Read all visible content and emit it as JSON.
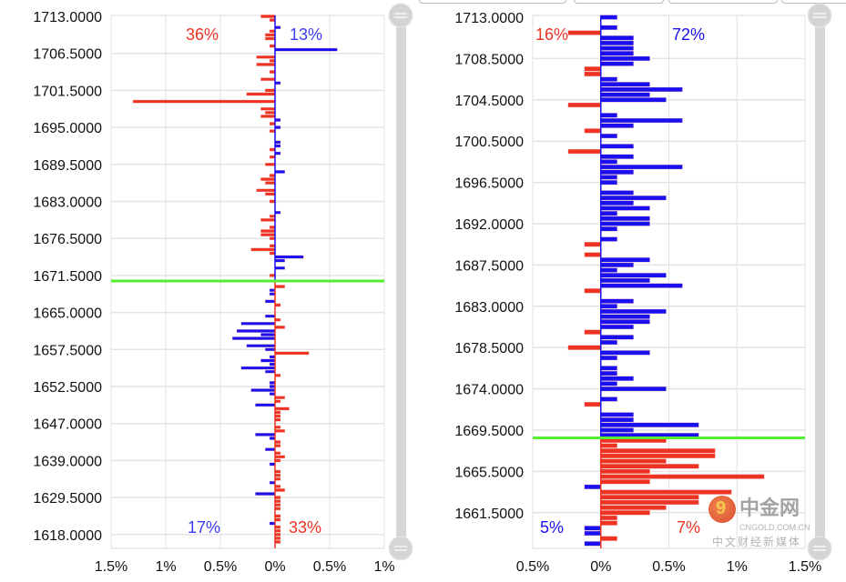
{
  "tabs": [
    "",
    "",
    "",
    ""
  ],
  "chart_data": [
    {
      "type": "bar",
      "orientation": "horizontal",
      "title": "",
      "y_tick_labels": [
        "1713.0000",
        "1706.5000",
        "1701.5000",
        "1695.0000",
        "1689.5000",
        "1683.0000",
        "1676.5000",
        "1671.5000",
        "1665.0000",
        "1657.5000",
        "1652.5000",
        "1647.0000",
        "1639.0000",
        "1629.5000",
        "1618.0000"
      ],
      "rows_per_tick": 10,
      "total_rows": 143,
      "x_tick_labels": [
        "1.5%",
        "1%",
        "0.5%",
        "0%",
        "0.5%",
        "1%"
      ],
      "xlim_pct": [
        -1.5,
        1.0
      ],
      "current_price_row": 71.5,
      "summary": {
        "top_left": "36%",
        "top_right": "13%",
        "bottom_left": "17%",
        "bottom_right": "33%"
      },
      "colors": {
        "red": "#ee3322",
        "blue": "#1a0fef",
        "current": "#55ee33"
      },
      "bars_note": "row index, value in %, color (r/b); negative = left side",
      "bars": [
        [
          0,
          -0.13,
          "r"
        ],
        [
          1,
          -0.05,
          "r"
        ],
        [
          3,
          0.05,
          "b"
        ],
        [
          4,
          -0.05,
          "r"
        ],
        [
          5,
          -0.09,
          "r"
        ],
        [
          6,
          -0.09,
          "r"
        ],
        [
          8,
          -0.05,
          "r"
        ],
        [
          9,
          0.57,
          "b"
        ],
        [
          11,
          -0.17,
          "r"
        ],
        [
          12,
          -0.05,
          "r"
        ],
        [
          13,
          -0.17,
          "r"
        ],
        [
          15,
          -0.05,
          "r"
        ],
        [
          17,
          -0.13,
          "r"
        ],
        [
          18,
          0.05,
          "b"
        ],
        [
          20,
          -0.09,
          "r"
        ],
        [
          21,
          -0.26,
          "r"
        ],
        [
          23,
          -1.3,
          "r"
        ],
        [
          25,
          -0.13,
          "r"
        ],
        [
          26,
          -0.09,
          "r"
        ],
        [
          27,
          -0.13,
          "r"
        ],
        [
          28,
          0.05,
          "b"
        ],
        [
          29,
          -0.05,
          "r"
        ],
        [
          30,
          0.05,
          "b"
        ],
        [
          31,
          -0.05,
          "r"
        ],
        [
          34,
          0.05,
          "b"
        ],
        [
          35,
          0.05,
          "b"
        ],
        [
          36,
          -0.05,
          "r"
        ],
        [
          37,
          0.05,
          "b"
        ],
        [
          38,
          -0.05,
          "r"
        ],
        [
          40,
          -0.09,
          "r"
        ],
        [
          42,
          0.09,
          "b"
        ],
        [
          43,
          -0.05,
          "r"
        ],
        [
          44,
          -0.13,
          "r"
        ],
        [
          45,
          -0.09,
          "r"
        ],
        [
          47,
          -0.17,
          "r"
        ],
        [
          48,
          -0.09,
          "r"
        ],
        [
          50,
          -0.05,
          "r"
        ],
        [
          53,
          0.05,
          "b"
        ],
        [
          54,
          -0.05,
          "r"
        ],
        [
          55,
          -0.13,
          "r"
        ],
        [
          57,
          -0.05,
          "r"
        ],
        [
          58,
          -0.13,
          "r"
        ],
        [
          59,
          -0.13,
          "r"
        ],
        [
          60,
          -0.05,
          "r"
        ],
        [
          62,
          -0.05,
          "r"
        ],
        [
          63,
          -0.22,
          "r"
        ],
        [
          64,
          -0.05,
          "r"
        ],
        [
          65,
          0.26,
          "b"
        ],
        [
          66,
          0.09,
          "b"
        ],
        [
          68,
          0.09,
          "b"
        ],
        [
          70,
          -0.05,
          "r"
        ],
        [
          73,
          0.09,
          "r"
        ],
        [
          74,
          -0.05,
          "b"
        ],
        [
          75,
          -0.05,
          "b"
        ],
        [
          77,
          -0.09,
          "b"
        ],
        [
          78,
          0.05,
          "r"
        ],
        [
          81,
          -0.09,
          "b"
        ],
        [
          82,
          0.05,
          "r"
        ],
        [
          83,
          -0.31,
          "b"
        ],
        [
          84,
          0.09,
          "r"
        ],
        [
          85,
          -0.35,
          "b"
        ],
        [
          86,
          -0.13,
          "b"
        ],
        [
          87,
          -0.39,
          "b"
        ],
        [
          89,
          -0.26,
          "b"
        ],
        [
          90,
          -0.09,
          "b"
        ],
        [
          91,
          0.31,
          "r"
        ],
        [
          92,
          -0.05,
          "b"
        ],
        [
          93,
          -0.13,
          "b"
        ],
        [
          94,
          -0.05,
          "b"
        ],
        [
          95,
          -0.31,
          "b"
        ],
        [
          96,
          -0.09,
          "b"
        ],
        [
          97,
          0.05,
          "r"
        ],
        [
          99,
          -0.05,
          "b"
        ],
        [
          100,
          -0.05,
          "b"
        ],
        [
          101,
          -0.22,
          "b"
        ],
        [
          102,
          -0.05,
          "b"
        ],
        [
          103,
          0.09,
          "r"
        ],
        [
          104,
          0.05,
          "r"
        ],
        [
          105,
          -0.18,
          "b"
        ],
        [
          106,
          0.13,
          "r"
        ],
        [
          107,
          0.05,
          "r"
        ],
        [
          108,
          0.05,
          "r"
        ],
        [
          109,
          0.05,
          "r"
        ],
        [
          111,
          0.05,
          "r"
        ],
        [
          112,
          0.09,
          "r"
        ],
        [
          113,
          -0.18,
          "b"
        ],
        [
          114,
          -0.05,
          "b"
        ],
        [
          115,
          0.05,
          "r"
        ],
        [
          116,
          0.05,
          "r"
        ],
        [
          117,
          -0.09,
          "b"
        ],
        [
          118,
          0.05,
          "r"
        ],
        [
          119,
          0.09,
          "r"
        ],
        [
          120,
          0.05,
          "r"
        ],
        [
          121,
          -0.05,
          "b"
        ],
        [
          123,
          0.05,
          "r"
        ],
        [
          124,
          0.05,
          "r"
        ],
        [
          125,
          0.05,
          "r"
        ],
        [
          126,
          -0.05,
          "b"
        ],
        [
          127,
          0.05,
          "r"
        ],
        [
          128,
          0.09,
          "r"
        ],
        [
          129,
          -0.18,
          "b"
        ],
        [
          130,
          0.05,
          "r"
        ],
        [
          131,
          0.05,
          "r"
        ],
        [
          132,
          0.05,
          "r"
        ],
        [
          133,
          0.05,
          "r"
        ],
        [
          135,
          0.05,
          "r"
        ],
        [
          136,
          0.05,
          "r"
        ],
        [
          137,
          -0.05,
          "b"
        ],
        [
          138,
          0.05,
          "r"
        ],
        [
          139,
          0.05,
          "r"
        ],
        [
          140,
          0.05,
          "r"
        ],
        [
          141,
          0.05,
          "r"
        ],
        [
          142,
          0.05,
          "r"
        ]
      ]
    },
    {
      "type": "bar",
      "orientation": "horizontal",
      "title": "",
      "y_tick_labels": [
        "1713.0000",
        "1708.5000",
        "1704.5000",
        "1700.5000",
        "1696.5000",
        "1692.0000",
        "1687.5000",
        "1683.0000",
        "1678.5000",
        "1674.0000",
        "1669.5000",
        "1665.5000",
        "1661.5000"
      ],
      "rows_per_tick": 8,
      "total_rows": 103,
      "x_tick_labels": [
        "0.5%",
        "0%",
        "0.5%",
        "1%",
        "1.5%"
      ],
      "xlim_pct": [
        -0.5,
        1.5
      ],
      "current_price_row": 81.5,
      "summary": {
        "top_left": "16%",
        "top_right": "72%",
        "bottom_left": "5%",
        "bottom_right": "7%"
      },
      "colors": {
        "red": "#ee3322",
        "blue": "#1a0fef",
        "current": "#55ee33"
      },
      "bars": [
        [
          0,
          0.12,
          "b"
        ],
        [
          2,
          0.12,
          "b"
        ],
        [
          3,
          -0.24,
          "r"
        ],
        [
          4,
          0.24,
          "b"
        ],
        [
          5,
          0.24,
          "b"
        ],
        [
          6,
          0.24,
          "b"
        ],
        [
          7,
          0.24,
          "b"
        ],
        [
          8,
          0.36,
          "b"
        ],
        [
          9,
          0.24,
          "b"
        ],
        [
          10,
          -0.12,
          "r"
        ],
        [
          11,
          -0.12,
          "r"
        ],
        [
          12,
          0.12,
          "b"
        ],
        [
          13,
          0.36,
          "b"
        ],
        [
          14,
          0.6,
          "b"
        ],
        [
          15,
          0.36,
          "b"
        ],
        [
          16,
          0.48,
          "b"
        ],
        [
          17,
          -0.24,
          "r"
        ],
        [
          19,
          0.12,
          "b"
        ],
        [
          20,
          0.6,
          "b"
        ],
        [
          21,
          0.24,
          "b"
        ],
        [
          22,
          -0.12,
          "r"
        ],
        [
          23,
          0.12,
          "b"
        ],
        [
          25,
          0.24,
          "b"
        ],
        [
          26,
          -0.24,
          "r"
        ],
        [
          27,
          0.24,
          "b"
        ],
        [
          28,
          0.12,
          "b"
        ],
        [
          29,
          0.6,
          "b"
        ],
        [
          30,
          0.24,
          "b"
        ],
        [
          31,
          0.12,
          "b"
        ],
        [
          32,
          0.12,
          "b"
        ],
        [
          34,
          0.24,
          "b"
        ],
        [
          35,
          0.48,
          "b"
        ],
        [
          36,
          0.24,
          "b"
        ],
        [
          37,
          0.36,
          "b"
        ],
        [
          38,
          0.12,
          "b"
        ],
        [
          39,
          0.36,
          "b"
        ],
        [
          40,
          0.36,
          "b"
        ],
        [
          41,
          0.12,
          "b"
        ],
        [
          43,
          0.12,
          "b"
        ],
        [
          44,
          -0.12,
          "r"
        ],
        [
          46,
          -0.12,
          "r"
        ],
        [
          47,
          0.36,
          "b"
        ],
        [
          48,
          0.24,
          "b"
        ],
        [
          49,
          0.12,
          "b"
        ],
        [
          50,
          0.48,
          "b"
        ],
        [
          51,
          0.36,
          "b"
        ],
        [
          52,
          0.6,
          "b"
        ],
        [
          53,
          -0.12,
          "r"
        ],
        [
          55,
          0.24,
          "b"
        ],
        [
          56,
          0.12,
          "b"
        ],
        [
          57,
          0.48,
          "b"
        ],
        [
          58,
          0.36,
          "b"
        ],
        [
          59,
          0.36,
          "b"
        ],
        [
          60,
          0.24,
          "b"
        ],
        [
          61,
          -0.12,
          "r"
        ],
        [
          62,
          0.24,
          "b"
        ],
        [
          63,
          0.12,
          "b"
        ],
        [
          64,
          -0.24,
          "r"
        ],
        [
          65,
          0.36,
          "b"
        ],
        [
          66,
          0.12,
          "b"
        ],
        [
          68,
          0.12,
          "b"
        ],
        [
          69,
          0.12,
          "b"
        ],
        [
          70,
          0.24,
          "b"
        ],
        [
          71,
          0.12,
          "b"
        ],
        [
          72,
          0.48,
          "b"
        ],
        [
          74,
          0.12,
          "b"
        ],
        [
          75,
          -0.12,
          "r"
        ],
        [
          77,
          0.24,
          "b"
        ],
        [
          78,
          0.24,
          "b"
        ],
        [
          79,
          0.72,
          "b"
        ],
        [
          80,
          0.24,
          "b"
        ],
        [
          81,
          0.72,
          "b"
        ],
        [
          82,
          0.48,
          "r"
        ],
        [
          83,
          0.12,
          "r"
        ],
        [
          84,
          0.84,
          "r"
        ],
        [
          85,
          0.84,
          "r"
        ],
        [
          86,
          0.48,
          "r"
        ],
        [
          87,
          0.72,
          "r"
        ],
        [
          88,
          0.36,
          "r"
        ],
        [
          89,
          1.2,
          "r"
        ],
        [
          90,
          0.36,
          "r"
        ],
        [
          91,
          -0.12,
          "b"
        ],
        [
          92,
          0.96,
          "r"
        ],
        [
          93,
          0.72,
          "r"
        ],
        [
          94,
          0.72,
          "r"
        ],
        [
          95,
          0.48,
          "r"
        ],
        [
          96,
          0.36,
          "r"
        ],
        [
          97,
          0.12,
          "r"
        ],
        [
          98,
          0.12,
          "r"
        ],
        [
          99,
          -0.12,
          "b"
        ],
        [
          100,
          -0.12,
          "b"
        ],
        [
          101,
          0.12,
          "r"
        ],
        [
          102,
          -0.12,
          "b"
        ]
      ]
    }
  ],
  "watermark": {
    "logo": "中金网",
    "domain": "CNGOLD.COM.CN",
    "tagline": "中文财经新媒体"
  }
}
